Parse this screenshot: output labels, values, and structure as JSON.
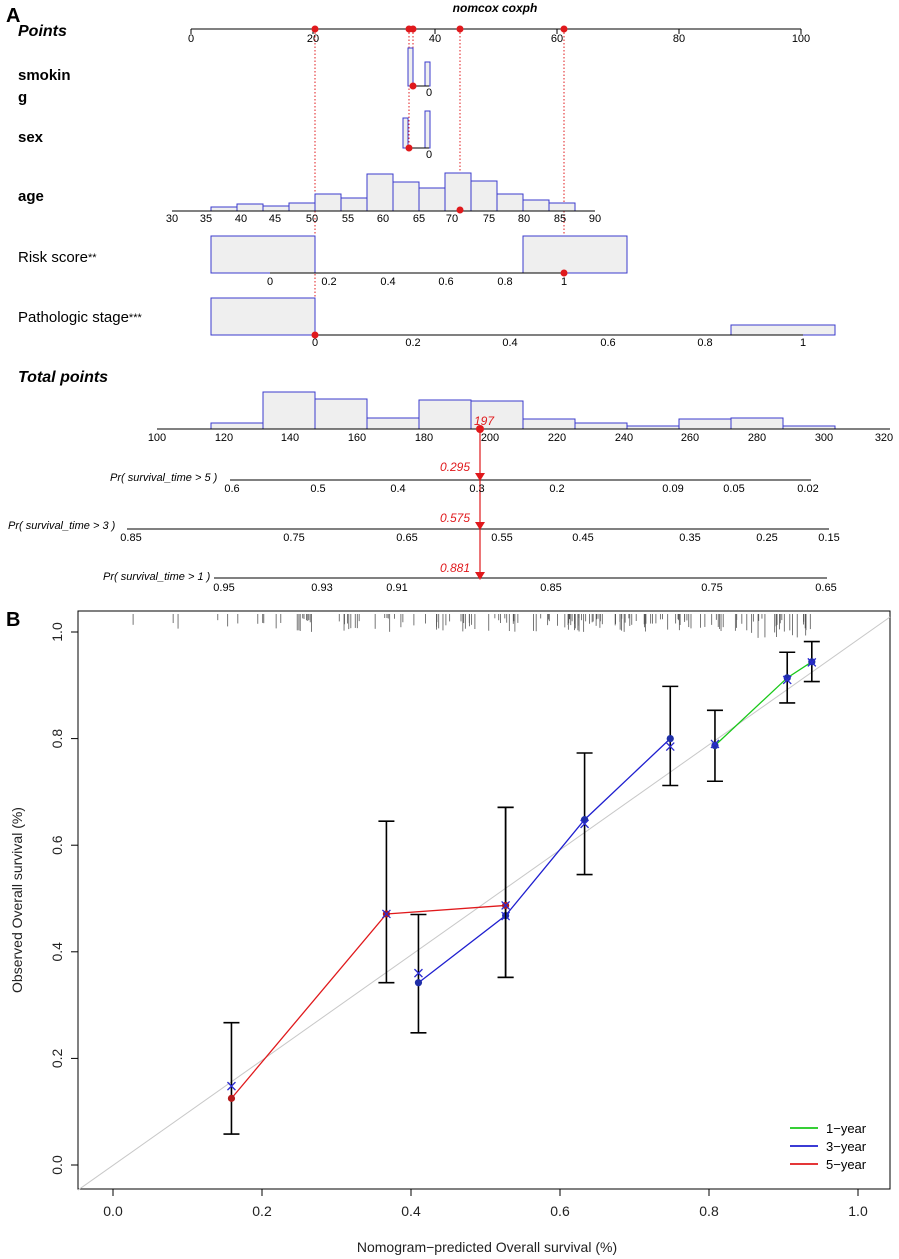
{
  "panel_a": {
    "letter": "A",
    "title": "nomcox coxph",
    "points_label": "Points",
    "points_ticks": [
      "0",
      "20",
      "40",
      "60",
      "80",
      "100"
    ],
    "variables": [
      {
        "label": "smokin",
        "label2": "g",
        "tick": "0"
      },
      {
        "label": "sex",
        "tick": "0"
      },
      {
        "label": "age",
        "ticks": [
          "30",
          "35",
          "40",
          "45",
          "50",
          "55",
          "60",
          "65",
          "70",
          "75",
          "80",
          "85",
          "90"
        ]
      },
      {
        "label": "Risk score",
        "stars": "**",
        "ticks": [
          "0",
          "0.2",
          "0.4",
          "0.6",
          "0.8",
          "1"
        ]
      },
      {
        "label": "Pathologic stage",
        "stars": "***",
        "ticks": [
          "0",
          "0.2",
          "0.4",
          "0.6",
          "0.8",
          "1"
        ]
      }
    ],
    "total_label": "Total points",
    "total_ticks": [
      "100",
      "120",
      "140",
      "160",
      "180",
      "200",
      "220",
      "240",
      "260",
      "280",
      "300",
      "320"
    ],
    "total_value": "197",
    "prob_rows": [
      {
        "label": "Pr( survival_time > 5 )",
        "value": "0.295",
        "ticks": [
          "0.6",
          "0.5",
          "0.4",
          "0.3",
          "0.2",
          "0.09",
          "0.05",
          "0.02"
        ]
      },
      {
        "label": "Pr( survival_time > 3 )",
        "value": "0.575",
        "ticks": [
          "0.85",
          "0.75",
          "0.65",
          "0.55",
          "0.45",
          "0.35",
          "0.25",
          "0.15"
        ]
      },
      {
        "label": "Pr( survival_time > 1 )",
        "value": "0.881",
        "ticks": [
          "0.95",
          "0.93",
          "0.91",
          "0.85",
          "0.75",
          "0.65"
        ]
      }
    ]
  },
  "panel_b": {
    "letter": "B"
  },
  "colors": {
    "hist_edge": "#3b3bcc",
    "hist_fill": "#efefef",
    "marker_red": "#e0191c",
    "one_year": "#19c819",
    "three_year": "#1f1fcf",
    "five_year": "#e0191c",
    "ideal": "#c8c8c8",
    "point_blue": "#1f2fa8",
    "point_red": "#b51a1a"
  },
  "chart_data": {
    "type": "scatter",
    "title": "",
    "xlabel": "Nomogram−predicted Overall survival (%)",
    "ylabel": "Observed Overall survival (%)",
    "xlim": [
      -0.05,
      1.05
    ],
    "ylim": [
      -0.02,
      1.05
    ],
    "xticks": [
      "0.0",
      "0.2",
      "0.4",
      "0.6",
      "0.8",
      "1.0"
    ],
    "yticks": [
      "0.0",
      "0.2",
      "0.4",
      "0.6",
      "0.8",
      "1.0"
    ],
    "legend_position": "bottom-right",
    "series": [
      {
        "name": "1−year",
        "color": "#19c819",
        "x": [
          0.808,
          0.905,
          0.938
        ],
        "observed": [
          0.787,
          0.914,
          0.944
        ],
        "predicted_cross": [
          0.79,
          0.91,
          0.943
        ],
        "ci_low": [
          0.72,
          0.867,
          0.907
        ],
        "ci_high": [
          0.853,
          0.962,
          0.982
        ]
      },
      {
        "name": "3−year",
        "color": "#1f1fcf",
        "x": [
          0.41,
          0.527,
          0.633,
          0.748
        ],
        "observed": [
          0.342,
          0.468,
          0.648,
          0.8
        ],
        "predicted_cross": [
          0.36,
          0.467,
          0.64,
          0.785
        ],
        "ci_low": [
          0.248,
          0.352,
          0.545,
          0.712
        ],
        "ci_high": [
          0.47,
          0.671,
          0.773,
          0.898
        ]
      },
      {
        "name": "5−year",
        "color": "#e0191c",
        "x": [
          0.159,
          0.367,
          0.527
        ],
        "observed": [
          0.125,
          0.471,
          0.487
        ],
        "predicted_cross": [
          0.148,
          0.471,
          0.487
        ],
        "ci_low": [
          0.058,
          0.342,
          0.352
        ],
        "ci_high": [
          0.267,
          0.645,
          0.671
        ]
      }
    ],
    "ideal_line": {
      "x": [
        0.0,
        1.0
      ],
      "y": [
        0.0,
        1.0
      ]
    }
  }
}
